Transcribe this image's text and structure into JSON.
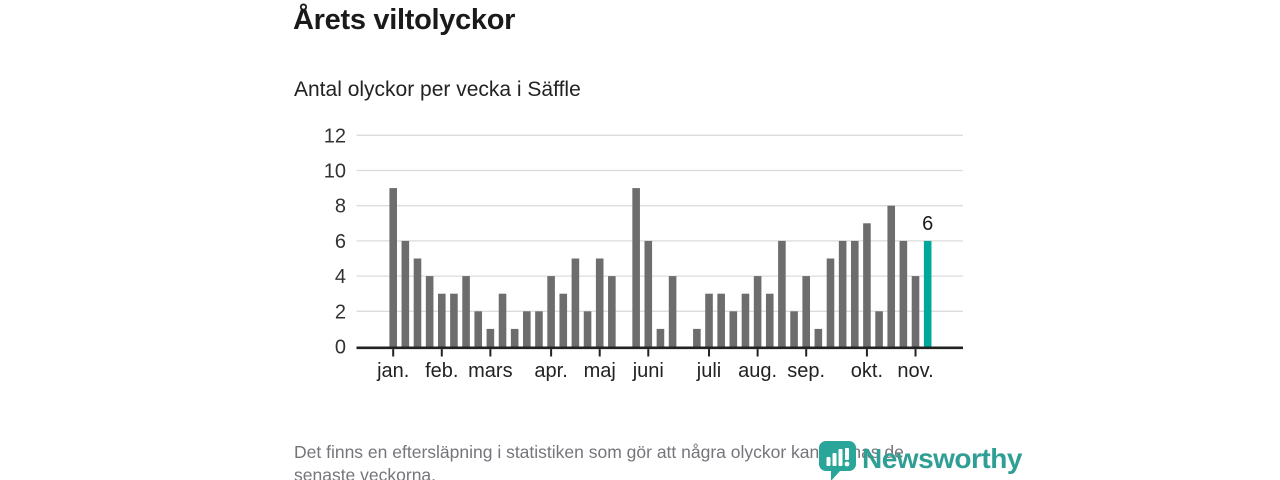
{
  "header": {
    "title": "Årets viltolyckor",
    "subtitle": "Antal olyckor per vecka i Säffle"
  },
  "chart_data": {
    "type": "bar",
    "title": "Årets viltolyckor",
    "subtitle": "Antal olyckor per vecka i Säffle",
    "x_unit": "vecka",
    "values": [
      9,
      6,
      5,
      4,
      3,
      3,
      4,
      2,
      1,
      3,
      1,
      2,
      2,
      4,
      3,
      5,
      2,
      5,
      4,
      0,
      9,
      6,
      1,
      4,
      0,
      1,
      3,
      3,
      2,
      3,
      4,
      3,
      6,
      2,
      4,
      1,
      5,
      6,
      6,
      7,
      2,
      8,
      6,
      4,
      6
    ],
    "highlight_index": 44,
    "highlight_value": 6,
    "highlight_label": "6",
    "month_ticks": [
      {
        "week_index": 0,
        "label": "jan."
      },
      {
        "week_index": 4,
        "label": "feb."
      },
      {
        "week_index": 8,
        "label": "mars"
      },
      {
        "week_index": 13,
        "label": "apr."
      },
      {
        "week_index": 17,
        "label": "maj"
      },
      {
        "week_index": 21,
        "label": "juni"
      },
      {
        "week_index": 26,
        "label": "juli"
      },
      {
        "week_index": 30,
        "label": "aug."
      },
      {
        "week_index": 34,
        "label": "sep."
      },
      {
        "week_index": 39,
        "label": "okt."
      },
      {
        "week_index": 43,
        "label": "nov."
      }
    ],
    "yticks": [
      0,
      2,
      4,
      6,
      8,
      10,
      12
    ],
    "ylim": [
      0,
      12
    ],
    "grid": true,
    "legend": "none",
    "colors": {
      "bar": "#6d6d6d",
      "highlight": "#00a79b",
      "axis": "#222222",
      "gridline": "#dcdcdc",
      "ytick_label": "#333333",
      "xtick_label": "#222222",
      "data_label": "#1a1a1a"
    }
  },
  "footnote": {
    "lines": [
      "Det finns en eftersläpning i statistiken som gör att några olyckor kan saknas de",
      "senaste veckorna."
    ]
  },
  "logo": {
    "name": "Newsworthy",
    "color": "#2f9e94",
    "pin_color": "#2aa59a"
  }
}
